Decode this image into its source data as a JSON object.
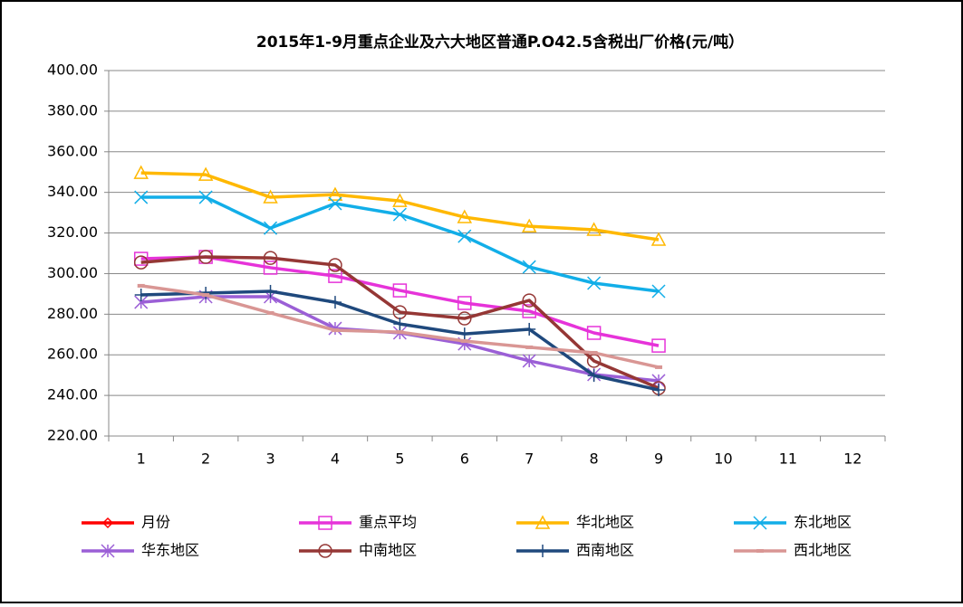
{
  "chart_data": {
    "type": "line",
    "title": "2015年1-9月重点企业及六大地区普通P.O42.5含税出厂价格(元/吨）",
    "categories": [
      "1",
      "2",
      "3",
      "4",
      "5",
      "6",
      "7",
      "8",
      "9",
      "10",
      "11",
      "12"
    ],
    "ylim": [
      220,
      400
    ],
    "yticks": [
      {
        "value": 220,
        "label": "220.00"
      },
      {
        "value": 240,
        "label": "240.00"
      },
      {
        "value": 260,
        "label": "260.00"
      },
      {
        "value": 280,
        "label": "280.00"
      },
      {
        "value": 300,
        "label": "300.00"
      },
      {
        "value": 320,
        "label": "320.00"
      },
      {
        "value": 340,
        "label": "340.00"
      },
      {
        "value": 360,
        "label": "360.00"
      },
      {
        "value": 380,
        "label": "380.00"
      },
      {
        "value": 400,
        "label": "400.00"
      }
    ],
    "grid": true,
    "legend": "bottom",
    "series": [
      {
        "name": "月份",
        "color": "#ff0000",
        "marker": "diamond",
        "values": [
          null,
          null,
          null,
          null,
          null,
          null,
          null,
          null,
          null,
          null,
          null,
          null
        ]
      },
      {
        "name": "重点平均",
        "color": "#e633d9",
        "marker": "square",
        "values": [
          307.3,
          308.2,
          302.9,
          298.8,
          291.7,
          285.5,
          281.5,
          270.8,
          264.5,
          null,
          null,
          null
        ]
      },
      {
        "name": "华北地区",
        "color": "#ffb800",
        "marker": "triangle",
        "values": [
          349.6,
          348.7,
          337.6,
          338.9,
          335.8,
          327.8,
          323.3,
          321.6,
          316.7,
          null,
          null,
          null
        ]
      },
      {
        "name": "东北地区",
        "color": "#12aee8",
        "marker": "x",
        "values": [
          337.6,
          337.6,
          322.4,
          334.5,
          329.1,
          318.4,
          303.3,
          295.3,
          291.3,
          null,
          null,
          null
        ]
      },
      {
        "name": "华东地区",
        "color": "#9b5fd6",
        "marker": "star",
        "values": [
          285.9,
          288.6,
          288.6,
          273.0,
          270.8,
          265.4,
          257.0,
          250.3,
          247.2,
          null,
          null,
          null
        ]
      },
      {
        "name": "中南地区",
        "color": "#953735",
        "marker": "circle",
        "values": [
          305.5,
          308.2,
          307.7,
          304.2,
          281.0,
          277.9,
          286.8,
          257.0,
          243.6,
          null,
          null,
          null
        ]
      },
      {
        "name": "西南地区",
        "color": "#1f497d",
        "marker": "plus",
        "values": [
          289.5,
          290.4,
          291.3,
          285.9,
          275.2,
          270.3,
          272.6,
          249.8,
          242.7,
          null,
          null,
          null
        ]
      },
      {
        "name": "西北地区",
        "color": "#d99694",
        "marker": "dash",
        "values": [
          294.0,
          289.5,
          280.6,
          272.1,
          271.2,
          266.8,
          263.7,
          261.0,
          253.9,
          null,
          null,
          null
        ]
      }
    ]
  }
}
